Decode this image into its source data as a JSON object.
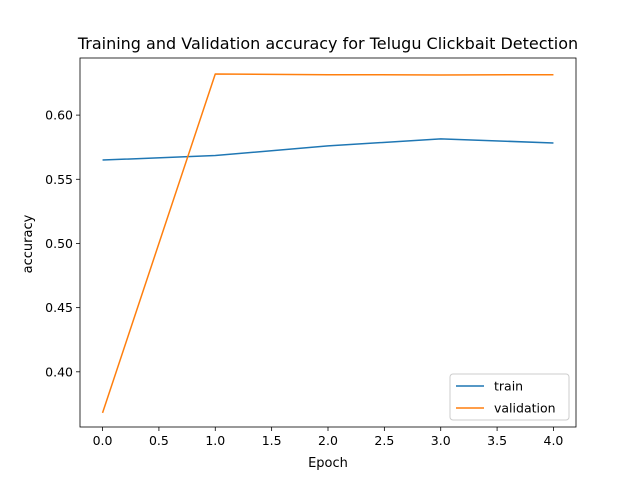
{
  "chart_data": {
    "type": "line",
    "title": "Training and Validation accuracy for Telugu Clickbait Detection",
    "xlabel": "Epoch",
    "ylabel": "accuracy",
    "x": [
      0,
      1,
      2,
      3,
      4
    ],
    "xlim": [
      -0.2,
      4.2
    ],
    "ylim": [
      0.357,
      0.6445
    ],
    "xticks": [
      "0.0",
      "0.5",
      "1.0",
      "1.5",
      "2.0",
      "2.5",
      "3.0",
      "3.5",
      "4.0"
    ],
    "yticks": [
      "0.40",
      "0.45",
      "0.50",
      "0.55",
      "0.60"
    ],
    "grid": false,
    "legend_position": "bottom-right",
    "series": [
      {
        "name": "train",
        "color": "#1f77b4",
        "values": [
          0.565,
          0.5685,
          0.576,
          0.5815,
          0.5783
        ]
      },
      {
        "name": "validation",
        "color": "#ff7f0e",
        "values": [
          0.368,
          0.632,
          0.6315,
          0.6313,
          0.6315
        ]
      }
    ]
  }
}
